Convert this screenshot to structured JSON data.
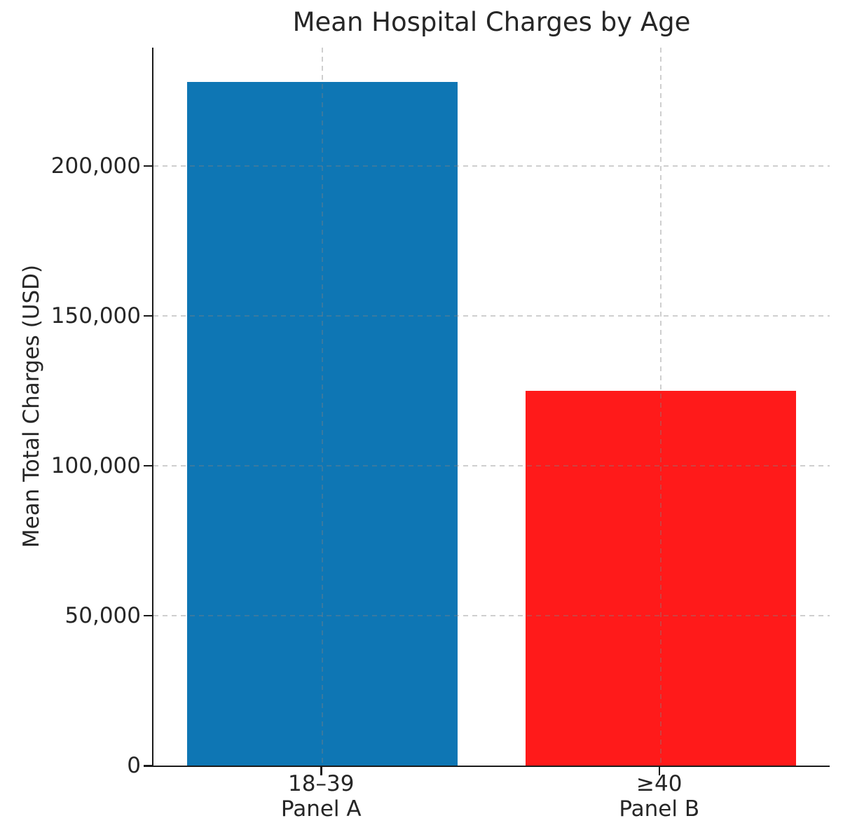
{
  "figure": {
    "background": "#ffffff"
  },
  "chart_data": {
    "type": "bar",
    "title": "Mean Hospital Charges by Age",
    "xlabel": "",
    "ylabel": "Mean Total Charges (USD)",
    "categories": [
      "18–39",
      "≥40"
    ],
    "category_sublabels": [
      "Panel A",
      "Panel B"
    ],
    "values": [
      228000,
      125000
    ],
    "bar_colors": [
      "#0e76b4",
      "#ff1a1a"
    ],
    "ylim": [
      0,
      239400
    ],
    "yticks": [
      0,
      50000,
      100000,
      150000,
      200000
    ],
    "ytick_labels": [
      "0",
      "50,000",
      "100,000",
      "150,000",
      "200,000"
    ],
    "bar_width_fraction": 0.8,
    "grid": {
      "horizontal": true,
      "vertical": true,
      "style": "dashed",
      "drawn_above_bars": true
    },
    "legend": "none"
  },
  "style": {
    "axis_color": "#1a1a1a",
    "text_color": "#262626"
  }
}
